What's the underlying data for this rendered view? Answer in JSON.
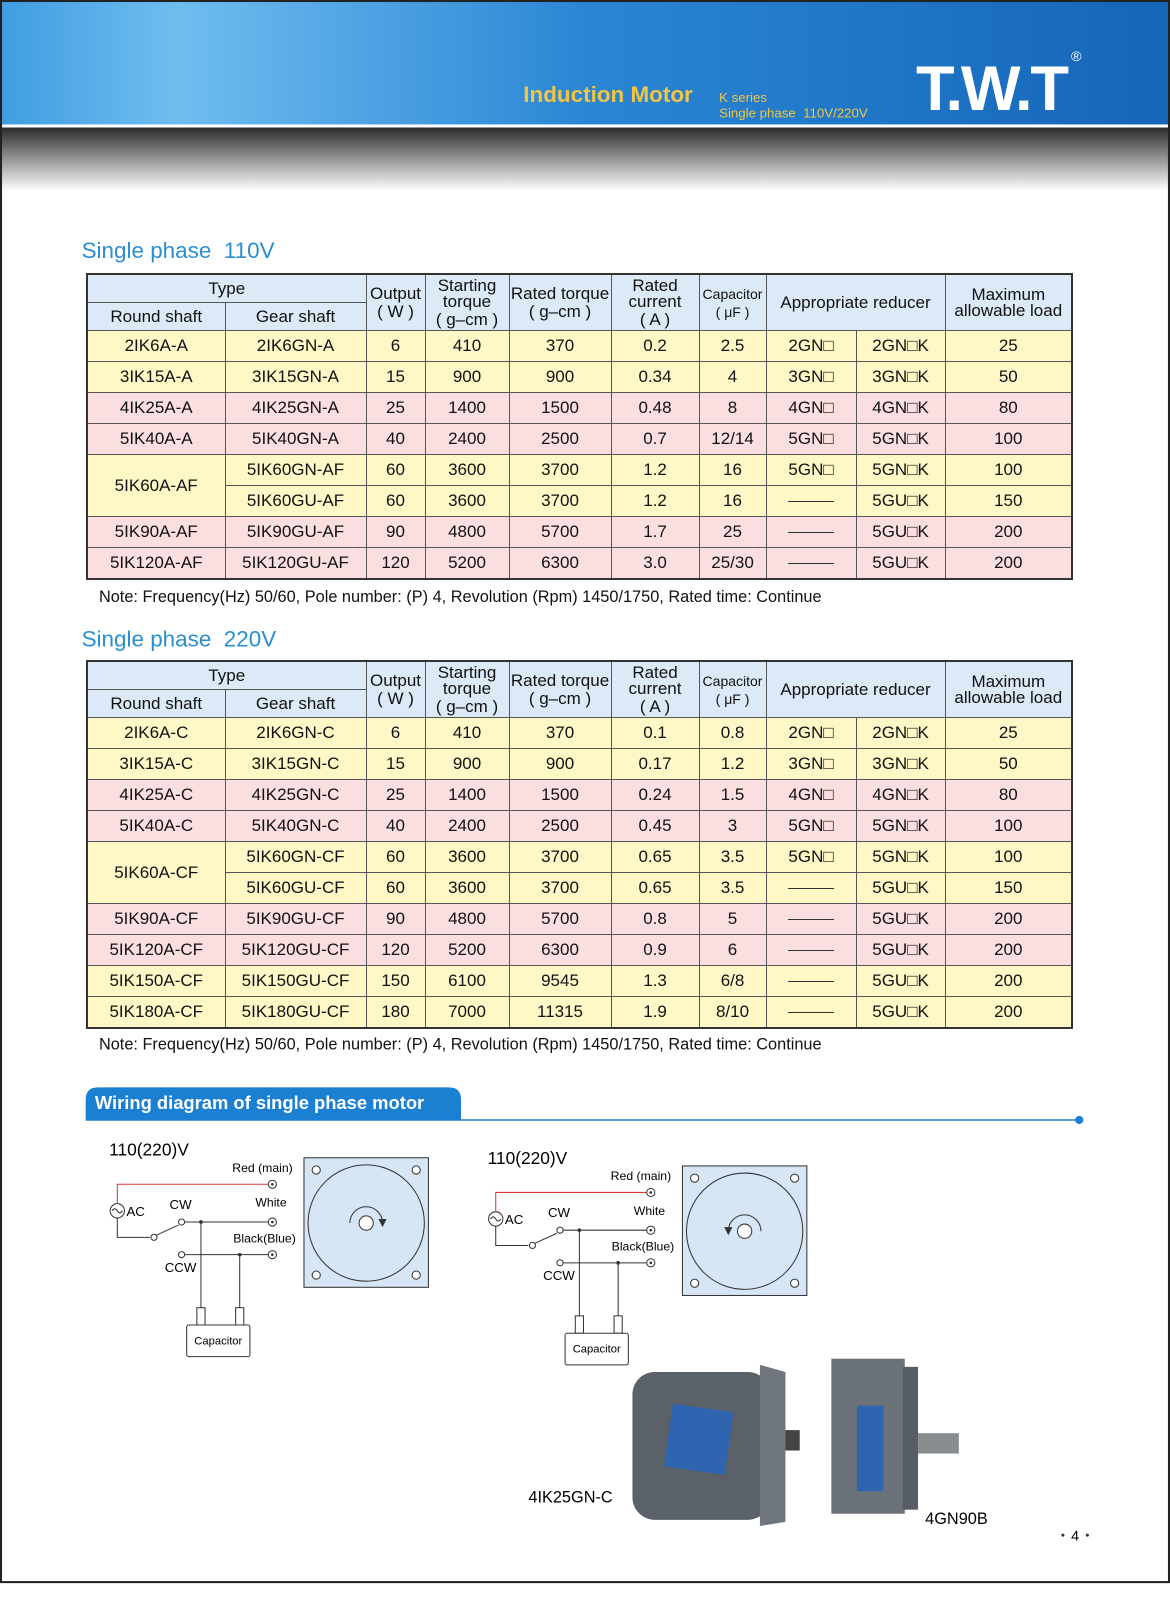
{
  "header": {
    "title": "Induction Motor",
    "series": "K series",
    "subtitle": "Single phase  110V/220V",
    "logo": "T.W.T",
    "registered": "®"
  },
  "tables": [
    {
      "title": "Single phase  110V",
      "headers": {
        "type": "Type",
        "round_shaft": "Round shaft",
        "gear_shaft": "Gear shaft",
        "columns": [
          {
            "label": "Output",
            "unit": "( W )"
          },
          {
            "label": "Starting torque",
            "unit": "( g–cm )"
          },
          {
            "label": "Rated torque",
            "unit": "( g–cm )"
          },
          {
            "label": "Rated current",
            "unit": "( A )"
          },
          {
            "label": "Capacitor",
            "unit": "( μF )"
          }
        ],
        "reducer": "Appropriate reducer",
        "max_load": "Maximum allowable load"
      },
      "rows": [
        [
          "2IK6A-A",
          "2IK6GN-A",
          "6",
          "410",
          "370",
          "0.2",
          "2.5",
          "2GN□",
          "2GN□K",
          "25"
        ],
        [
          "3IK15A-A",
          "3IK15GN-A",
          "15",
          "900",
          "900",
          "0.34",
          "4",
          "3GN□",
          "3GN□K",
          "50"
        ],
        [
          "4IK25A-A",
          "4IK25GN-A",
          "25",
          "1400",
          "1500",
          "0.48",
          "8",
          "4GN□",
          "4GN□K",
          "80"
        ],
        [
          "5IK40A-A",
          "5IK40GN-A",
          "40",
          "2400",
          "2500",
          "0.7",
          "12/14",
          "5GN□",
          "5GN□K",
          "100"
        ],
        [
          "5IK60A-AF",
          "5IK60GN-AF",
          "60",
          "3600",
          "3700",
          "1.2",
          "16",
          "5GN□",
          "5GN□K",
          "100"
        ],
        [
          "5IK60GU-AF",
          "60",
          "3600",
          "3700",
          "1.2",
          "16",
          null,
          "5GU□K",
          "150"
        ],
        [
          "5IK90A-AF",
          "5IK90GU-AF",
          "90",
          "4800",
          "5700",
          "1.7",
          "25",
          null,
          "5GU□K",
          "200"
        ],
        [
          "5IK120A-AF",
          "5IK120GU-AF",
          "120",
          "5200",
          "6300",
          "3.0",
          "25/30",
          null,
          "5GU□K",
          "200"
        ]
      ],
      "note": "Note: Frequency(Hz) 50/60, Pole number: (P) 4, Revolution (Rpm) 1450/1750, Rated time: Continue"
    },
    {
      "title": "Single phase  220V",
      "headers": {
        "type": "Type",
        "round_shaft": "Round shaft",
        "gear_shaft": "Gear shaft",
        "columns": [
          {
            "label": "Output",
            "unit": "( W )"
          },
          {
            "label": "Starting torque",
            "unit": "( g–cm )"
          },
          {
            "label": "Rated torque",
            "unit": "( g–cm )"
          },
          {
            "label": "Rated current",
            "unit": "( A )"
          },
          {
            "label": "Capacitor",
            "unit": "( μF )"
          }
        ],
        "reducer": "Appropriate reducer",
        "max_load": "Maximum allowable load"
      },
      "rows": [
        [
          "2IK6A-C",
          "2IK6GN-C",
          "6",
          "410",
          "370",
          "0.1",
          "0.8",
          "2GN□",
          "2GN□K",
          "25"
        ],
        [
          "3IK15A-C",
          "3IK15GN-C",
          "15",
          "900",
          "900",
          "0.17",
          "1.2",
          "3GN□",
          "3GN□K",
          "50"
        ],
        [
          "4IK25A-C",
          "4IK25GN-C",
          "25",
          "1400",
          "1500",
          "0.24",
          "1.5",
          "4GN□",
          "4GN□K",
          "80"
        ],
        [
          "5IK40A-C",
          "5IK40GN-C",
          "40",
          "2400",
          "2500",
          "0.45",
          "3",
          "5GN□",
          "5GN□K",
          "100"
        ],
        [
          "5IK60A-CF",
          "5IK60GN-CF",
          "60",
          "3600",
          "3700",
          "0.65",
          "3.5",
          "5GN□",
          "5GN□K",
          "100"
        ],
        [
          "5IK60GU-CF",
          "60",
          "3600",
          "3700",
          "0.65",
          "3.5",
          null,
          "5GU□K",
          "150"
        ],
        [
          "5IK90A-CF",
          "5IK90GU-CF",
          "90",
          "4800",
          "5700",
          "0.8",
          "5",
          null,
          "5GU□K",
          "200"
        ],
        [
          "5IK120A-CF",
          "5IK120GU-CF",
          "120",
          "5200",
          "6300",
          "0.9",
          "6",
          null,
          "5GU□K",
          "200"
        ],
        [
          "5IK150A-CF",
          "5IK150GU-CF",
          "150",
          "6100",
          "9545",
          "1.3",
          "6/8",
          null,
          "5GU□K",
          "200"
        ],
        [
          "5IK180A-CF",
          "5IK180GU-CF",
          "180",
          "7000",
          "11315",
          "1.9",
          "8/10",
          null,
          "5GU□K",
          "200"
        ]
      ],
      "note": "Note: Frequency(Hz) 50/60, Pole number: (P) 4, Revolution (Rpm) 1450/1750, Rated time: Continue"
    }
  ],
  "wiring": {
    "title": "Wiring diagram of single phase motor",
    "diagrams": [
      {
        "voltage": "110(220)V",
        "red": "Red (main)",
        "white": "White",
        "black": "Black(Blue)",
        "ac": "AC",
        "cw": "CW",
        "ccw": "CCW",
        "capacitor": "Capacitor"
      },
      {
        "voltage": "110(220)V",
        "red": "Red (main)",
        "white": "White",
        "black": "Black(Blue)",
        "ac": "AC",
        "cw": "CW",
        "ccw": "CCW",
        "capacitor": "Capacitor"
      }
    ]
  },
  "photos": [
    {
      "label": "4IK25GN-C"
    },
    {
      "label": "4GN90B"
    }
  ],
  "page_number": "4"
}
